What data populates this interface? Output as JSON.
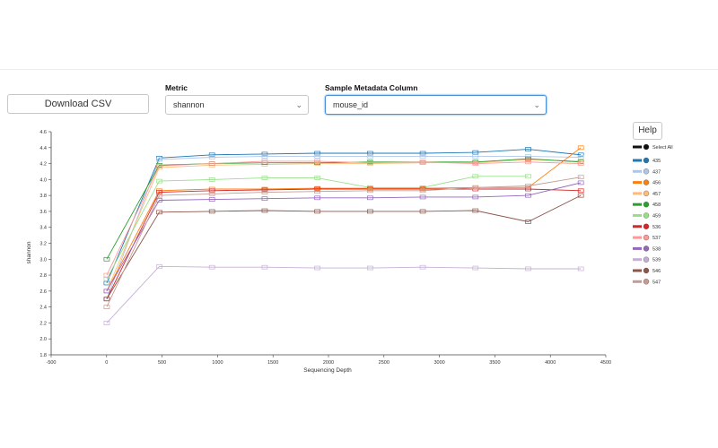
{
  "controls": {
    "download_label": "Download CSV",
    "metric_label": "Metric",
    "metric_value": "shannon",
    "metadata_label": "Sample Metadata Column",
    "metadata_value": "mouse_id",
    "help_label": "Help"
  },
  "legend": {
    "select_all_label": "Select All",
    "items": [
      {
        "label": "435",
        "color": "#1f77b4"
      },
      {
        "label": "437",
        "color": "#aec7e8"
      },
      {
        "label": "456",
        "color": "#ff7f0e"
      },
      {
        "label": "457",
        "color": "#ffbb78"
      },
      {
        "label": "458",
        "color": "#2ca02c"
      },
      {
        "label": "459",
        "color": "#98df8a"
      },
      {
        "label": "536",
        "color": "#d62728"
      },
      {
        "label": "537",
        "color": "#ff9896"
      },
      {
        "label": "538",
        "color": "#9467bd"
      },
      {
        "label": "539",
        "color": "#c5b0d5"
      },
      {
        "label": "546",
        "color": "#8c564b"
      },
      {
        "label": "547",
        "color": "#c49c94"
      }
    ]
  },
  "chart_data": {
    "type": "line",
    "xlabel": "Sequencing Depth",
    "ylabel": "shannon",
    "xlim": [
      -500,
      4500
    ],
    "ylim": [
      1.8,
      4.6
    ],
    "xticks": [
      -500,
      0,
      500,
      1000,
      1500,
      2000,
      2500,
      3000,
      3500,
      4000,
      4500
    ],
    "yticks": [
      1.8,
      2.0,
      2.2,
      2.4,
      2.6,
      2.8,
      3.0,
      3.2,
      3.4,
      3.6,
      3.8,
      4.0,
      4.2,
      4.4,
      4.6
    ],
    "x": [
      1,
      475,
      950,
      1425,
      1900,
      2375,
      2850,
      3325,
      3800,
      4275
    ],
    "series": [
      {
        "name": "435",
        "color": "#1f77b4",
        "values": [
          2.7,
          4.27,
          4.31,
          4.32,
          4.33,
          4.33,
          4.33,
          4.34,
          4.38,
          4.31
        ]
      },
      {
        "name": "437",
        "color": "#aec7e8",
        "values": [
          2.5,
          4.25,
          4.28,
          4.29,
          4.29,
          4.29,
          4.29,
          4.29,
          4.29,
          4.28
        ]
      },
      {
        "name": "456",
        "color": "#ff7f0e",
        "values": [
          2.6,
          3.86,
          3.88,
          3.88,
          3.89,
          3.89,
          3.89,
          3.9,
          3.9,
          4.4
        ]
      },
      {
        "name": "457",
        "color": "#ffbb78",
        "values": [
          2.6,
          4.15,
          4.18,
          4.19,
          4.2,
          4.2,
          4.21,
          4.21,
          4.25,
          4.23
        ]
      },
      {
        "name": "458",
        "color": "#2ca02c",
        "values": [
          3.0,
          4.18,
          4.2,
          4.21,
          4.21,
          4.22,
          4.22,
          4.22,
          4.26,
          4.22
        ]
      },
      {
        "name": "459",
        "color": "#98df8a",
        "values": [
          2.75,
          3.98,
          4.0,
          4.02,
          4.02,
          3.9,
          3.9,
          4.04,
          4.04,
          null
        ]
      },
      {
        "name": "536",
        "color": "#d62728",
        "values": [
          2.5,
          3.84,
          3.86,
          3.87,
          3.88,
          3.88,
          3.88,
          3.88,
          3.88,
          3.86
        ]
      },
      {
        "name": "537",
        "color": "#ff9896",
        "values": [
          2.8,
          4.17,
          4.2,
          4.23,
          4.23,
          4.21,
          4.22,
          4.2,
          4.22,
          4.2
        ]
      },
      {
        "name": "538",
        "color": "#9467bd",
        "values": [
          2.6,
          3.74,
          3.75,
          3.76,
          3.77,
          3.77,
          3.78,
          3.78,
          3.8,
          3.96
        ]
      },
      {
        "name": "539",
        "color": "#c5b0d5",
        "values": [
          2.2,
          2.91,
          2.9,
          2.9,
          2.89,
          2.89,
          2.9,
          2.89,
          2.88,
          2.88
        ]
      },
      {
        "name": "546",
        "color": "#8c564b",
        "values": [
          2.5,
          3.59,
          3.6,
          3.61,
          3.6,
          3.6,
          3.6,
          3.61,
          3.47,
          3.8
        ]
      },
      {
        "name": "547",
        "color": "#c49c94",
        "values": [
          2.4,
          3.8,
          3.82,
          3.84,
          3.85,
          3.86,
          3.86,
          3.9,
          3.92,
          4.03
        ]
      }
    ]
  }
}
